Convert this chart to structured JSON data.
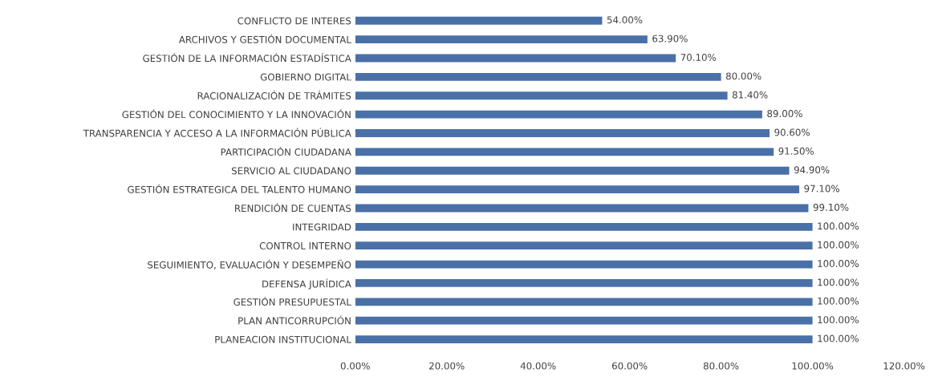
{
  "chart_data": {
    "type": "bar",
    "orientation": "horizontal",
    "categories": [
      "CONFLICTO DE INTERES",
      "ARCHIVOS Y GESTIÓN DOCUMENTAL",
      "GESTIÓN DE LA INFORMACIÓN ESTADÍSTICA",
      "GOBIERNO DIGITAL",
      "RACIONALIZACIÓN DE TRÁMITES",
      "GESTIÓN DEL CONOCIMIENTO Y LA INNOVACIÓN",
      "TRANSPARENCIA Y ACCESO A LA INFORMACIÓN PÚBLICA",
      "PARTICIPACIÓN CIUDADANA",
      "SERVICIO AL CIUDADANO",
      "GESTIÓN ESTRATEGICA DEL TALENTO HUMANO",
      "RENDICIÓN DE CUENTAS",
      "INTEGRIDAD",
      "CONTROL INTERNO",
      "SEGUIMIENTO, EVALUACIÓN Y DESEMPEÑO",
      "DEFENSA JURÍDICA",
      "GESTIÓN PRESUPUESTAL",
      "PLAN ANTICORRUPCIÓN",
      "PLANEACION INSTITUCIONAL"
    ],
    "values": [
      54.0,
      63.9,
      70.1,
      80.0,
      81.4,
      89.0,
      90.6,
      91.5,
      94.9,
      97.1,
      99.1,
      100,
      100,
      100,
      100,
      100,
      100,
      100
    ],
    "value_labels": [
      "54.00%",
      "63.90%",
      "70.10%",
      "80.00%",
      "81.40%",
      "89.00%",
      "90.60%",
      "91.50%",
      "94.90%",
      "97.10%",
      "99.10%",
      "100.00%",
      "100.00%",
      "100.00%",
      "100.00%",
      "100.00%",
      "100.00%",
      "100.00%"
    ],
    "color": "#4a70a8",
    "xlim": [
      0,
      120
    ],
    "xticks": [
      {
        "value": 0,
        "label": "0.00%"
      },
      {
        "value": 20,
        "label": "20.00%"
      },
      {
        "value": 40,
        "label": "40.00%"
      },
      {
        "value": 60,
        "label": "60.00%"
      },
      {
        "value": 80,
        "label": "80.00%"
      },
      {
        "value": 100,
        "label": "100.00%"
      },
      {
        "value": 120,
        "label": "120.00%"
      }
    ],
    "grid": false,
    "legend": false
  }
}
